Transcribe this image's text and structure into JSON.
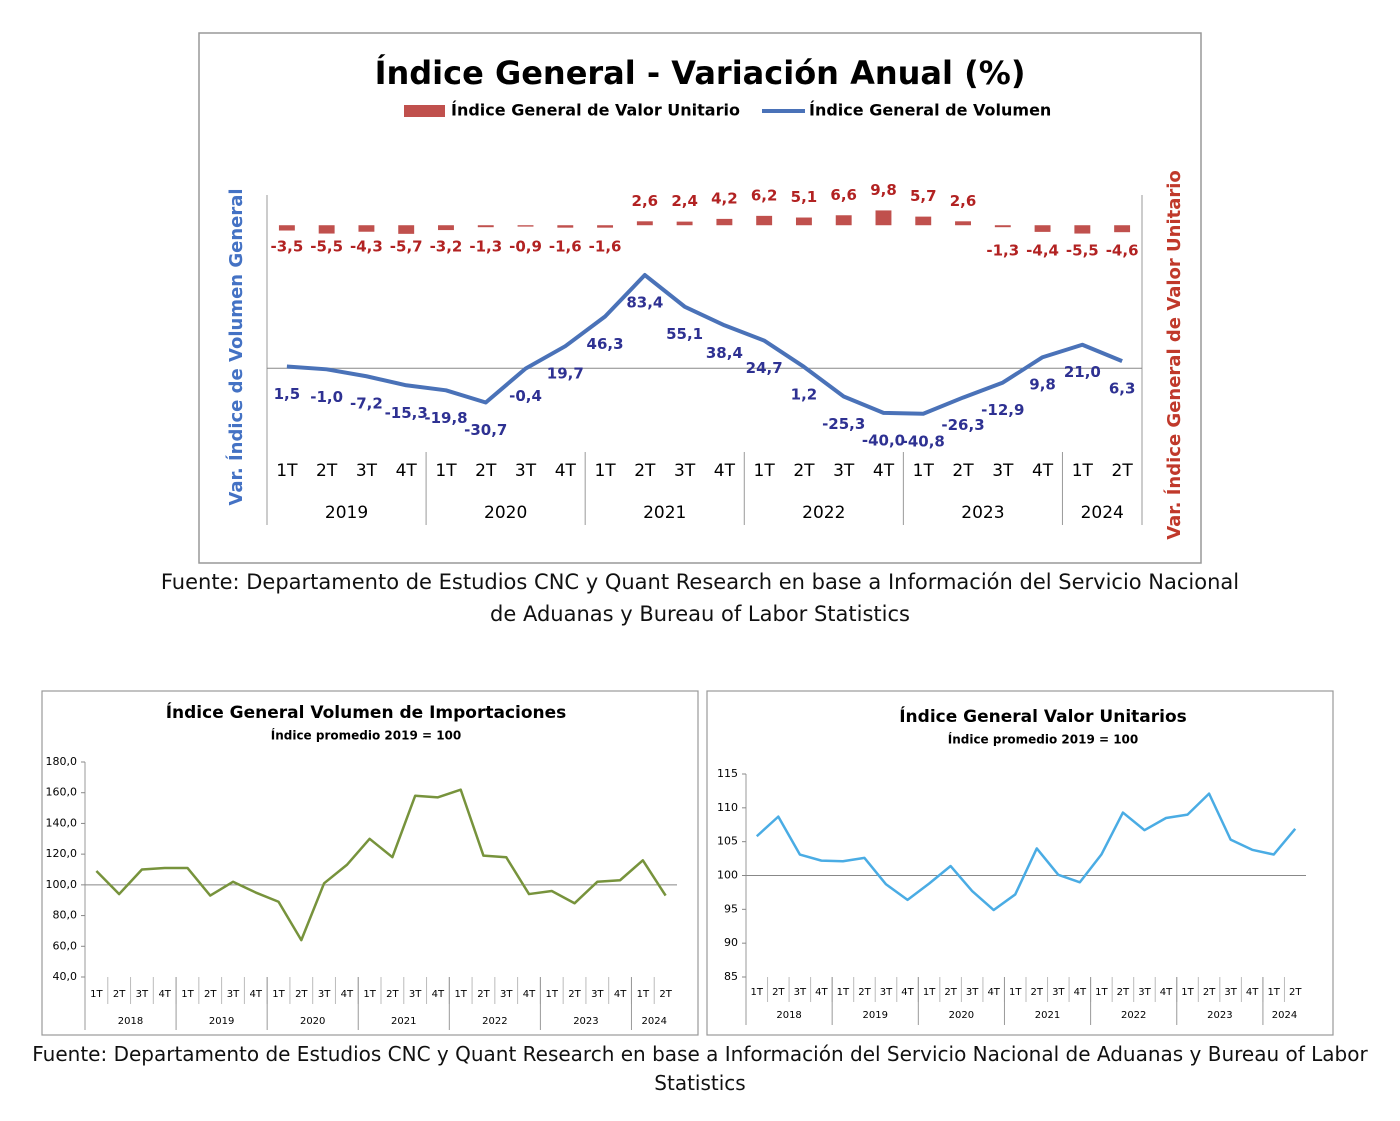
{
  "chart_data": [
    {
      "type": "combo",
      "title": "Índice General - Variación Anual (%)",
      "ylabel": "Var. Índice de Volumen General",
      "y2label": "Var. Índice General de Valor Unitario",
      "categories": [
        "1T",
        "2T",
        "3T",
        "4T",
        "1T",
        "2T",
        "3T",
        "4T",
        "1T",
        "2T",
        "3T",
        "4T",
        "1T",
        "2T",
        "3T",
        "4T",
        "1T",
        "2T",
        "3T",
        "4T",
        "1T",
        "2T"
      ],
      "year_groups": [
        {
          "label": "2019",
          "size": 4
        },
        {
          "label": "2020",
          "size": 4
        },
        {
          "label": "2021",
          "size": 4
        },
        {
          "label": "2022",
          "size": 4
        },
        {
          "label": "2023",
          "size": 4
        },
        {
          "label": "2024",
          "size": 2
        }
      ],
      "ylim": [
        -75,
        155
      ],
      "y2lim": [
        -150,
        20
      ],
      "series": [
        {
          "name": "Índice General de Valor Unitario",
          "type": "bar",
          "axis": "y2",
          "color": "#c0504d",
          "values": [
            -3.5,
            -5.5,
            -4.3,
            -5.7,
            -3.2,
            -1.3,
            -0.9,
            -1.6,
            -1.6,
            2.6,
            2.4,
            4.2,
            6.2,
            5.1,
            6.6,
            9.8,
            5.7,
            2.6,
            -1.3,
            -4.4,
            -5.5,
            -4.6
          ],
          "value_labels": [
            "-3,5",
            "-5,5",
            "-4,3",
            "-5,7",
            "-3,2",
            "-1,3",
            "-0,9",
            "-1,6",
            "-1,6",
            "2,6",
            "2,4",
            "4,2",
            "6,2",
            "5,1",
            "6,6",
            "9,8",
            "5,7",
            "2,6",
            "-1,3",
            "-4,4",
            "-5,5",
            "-4,6"
          ]
        },
        {
          "name": "Índice General de Volumen",
          "type": "line",
          "color": "#4a72b8",
          "values": [
            1.5,
            -1.0,
            -7.2,
            -15.3,
            -19.8,
            -30.7,
            -0.4,
            19.7,
            46.3,
            83.4,
            55.1,
            38.4,
            24.7,
            1.2,
            -25.3,
            -40.0,
            -40.8,
            -26.3,
            -12.9,
            9.8,
            21.0,
            6.3
          ],
          "value_labels": [
            "1,5",
            "-1,0",
            "-7,2",
            "-15,3",
            "-19,8",
            "-30,7",
            "-0,4",
            "19,7",
            "46,3",
            "83,4",
            "55,1",
            "38,4",
            "24,7",
            "1,2",
            "-25,3",
            "-40,0",
            "-40,8",
            "-26,3",
            "-12,9",
            "9,8",
            "21,0",
            "6,3"
          ]
        }
      ]
    },
    {
      "type": "line",
      "title": "Índice General Volumen de Importaciones",
      "subtitle": "Índice promedio 2019 = 100",
      "categories": [
        "1T",
        "2T",
        "3T",
        "4T",
        "1T",
        "2T",
        "3T",
        "4T",
        "1T",
        "2T",
        "3T",
        "4T",
        "1T",
        "2T",
        "3T",
        "4T",
        "1T",
        "2T",
        "3T",
        "4T",
        "1T",
        "2T",
        "3T",
        "4T",
        "1T",
        "2T"
      ],
      "year_groups": [
        {
          "label": "2018",
          "size": 4
        },
        {
          "label": "2019",
          "size": 4
        },
        {
          "label": "2020",
          "size": 4
        },
        {
          "label": "2021",
          "size": 4
        },
        {
          "label": "2022",
          "size": 4
        },
        {
          "label": "2023",
          "size": 4
        },
        {
          "label": "2024",
          "size": 2
        }
      ],
      "ylim": [
        40,
        180
      ],
      "yticks": [
        {
          "value": 40,
          "label": "40,0"
        },
        {
          "value": 60,
          "label": "60,0"
        },
        {
          "value": 80,
          "label": "80,0"
        },
        {
          "value": 100,
          "label": "100,0"
        },
        {
          "value": 120,
          "label": "120,0"
        },
        {
          "value": 140,
          "label": "140,0"
        },
        {
          "value": 160,
          "label": "160,0"
        },
        {
          "value": 180,
          "label": "180,0"
        }
      ],
      "xaxis_at": 100,
      "series": [
        {
          "color": "#77933c",
          "values": [
            109,
            94,
            110,
            111,
            111,
            93,
            102,
            95,
            89,
            64,
            101,
            113,
            130,
            118,
            158,
            157,
            162,
            119,
            118,
            94,
            96,
            88,
            102,
            103,
            116,
            93
          ]
        }
      ]
    },
    {
      "type": "line",
      "title": "Índice General Valor Unitarios",
      "subtitle": "Índice promedio 2019 = 100",
      "categories": [
        "1T",
        "2T",
        "3T",
        "4T",
        "1T",
        "2T",
        "3T",
        "4T",
        "1T",
        "2T",
        "3T",
        "4T",
        "1T",
        "2T",
        "3T",
        "4T",
        "1T",
        "2T",
        "3T",
        "4T",
        "1T",
        "2T",
        "3T",
        "4T",
        "1T",
        "2T"
      ],
      "year_groups": [
        {
          "label": "2018",
          "size": 4
        },
        {
          "label": "2019",
          "size": 4
        },
        {
          "label": "2020",
          "size": 4
        },
        {
          "label": "2021",
          "size": 4
        },
        {
          "label": "2022",
          "size": 4
        },
        {
          "label": "2023",
          "size": 4
        },
        {
          "label": "2024",
          "size": 2
        }
      ],
      "ylim": [
        85,
        115
      ],
      "yticks": [
        85,
        90,
        95,
        100,
        105,
        110,
        115
      ],
      "xaxis_at": 100,
      "series": [
        {
          "color": "#4aace4",
          "values": [
            105.8,
            108.7,
            103.1,
            102.2,
            102.1,
            102.6,
            98.7,
            96.4,
            98.8,
            101.4,
            97.7,
            94.9,
            97.2,
            104.0,
            100.1,
            99.0,
            103.1,
            109.3,
            106.7,
            108.5,
            109.0,
            112.1,
            105.3,
            103.8,
            103.1,
            106.9
          ]
        }
      ]
    }
  ],
  "sources": [
    "Fuente: Departamento de Estudios CNC y Quant Research en base a Información del Servicio Nacional de Aduanas y Bureau of Labor Statistics",
    "Fuente: Departamento de Estudios CNC y Quant Research en base a Información del Servicio Nacional de Aduanas y Bureau of Labor Statistics"
  ]
}
